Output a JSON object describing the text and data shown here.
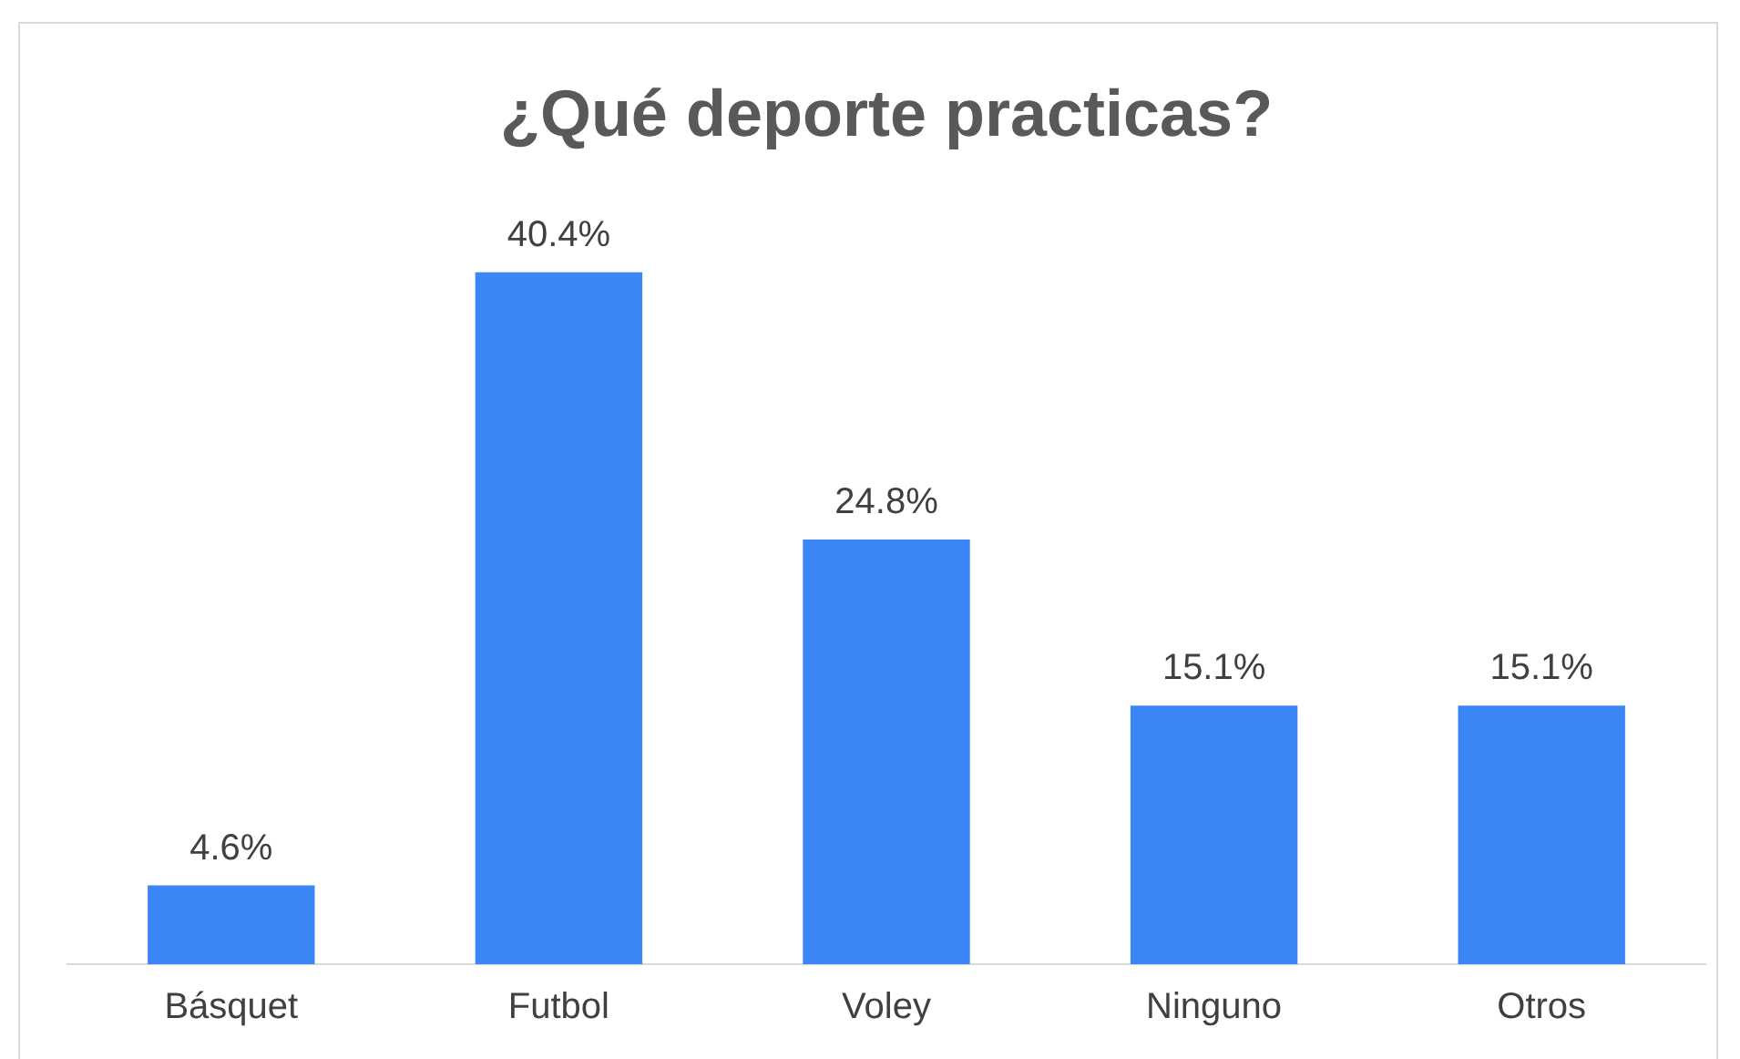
{
  "chart_data": {
    "type": "bar",
    "title": "¿Qué deporte practicas?",
    "categories": [
      "Básquet",
      "Futbol",
      "Voley",
      "Ninguno",
      "Otros"
    ],
    "values": [
      4.6,
      40.4,
      24.8,
      15.1,
      15.1
    ],
    "value_labels": [
      "4.6%",
      "40.4%",
      "24.8%",
      "15.1%",
      "15.1%"
    ],
    "color": "#3a86f7"
  }
}
